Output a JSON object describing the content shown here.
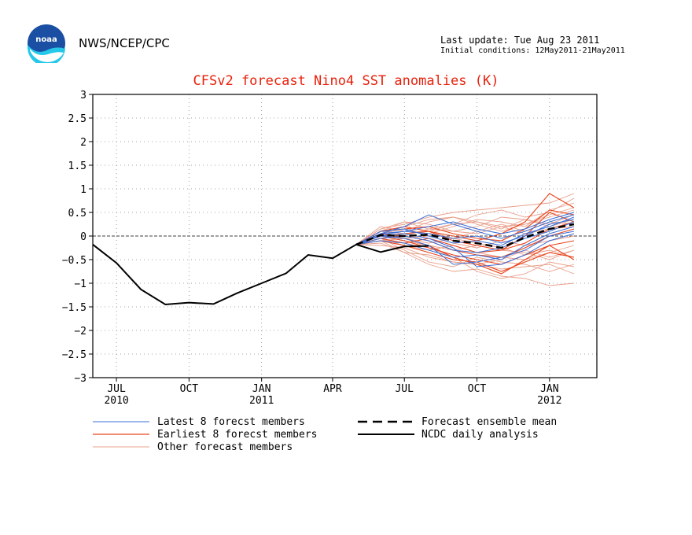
{
  "header": {
    "org": "NWS/NCEP/CPC",
    "last_update": "Last update: Tue Aug 23 2011",
    "initial_conditions": "Initial conditions: 12May2011-21May2011"
  },
  "colors": {
    "title": "#e8200a",
    "latest": "#3a6fd8",
    "earliest": "#e8431a",
    "other": "#e8a08c",
    "ncdc": "#000000",
    "mean": "#000000",
    "logo_blue": "#1a4fa3",
    "logo_cyan": "#25c8e8"
  },
  "chart_data": {
    "type": "line",
    "title": "CFSv2 forecast Nino4 SST anomalies (K)",
    "xlabel": "",
    "ylabel": "",
    "ylim": [
      -3,
      3
    ],
    "yticks": [
      3,
      2.5,
      2,
      1.5,
      1,
      0.5,
      0,
      -0.5,
      -1,
      -1.5,
      -2,
      -2.5,
      -3
    ],
    "ytick_labels": [
      "3",
      "2.5",
      "2",
      "1.5",
      "1",
      "0.5",
      "0",
      "−0.5",
      "−1",
      "−1.5",
      "−2",
      "−2.5",
      "−3"
    ],
    "xlim": [
      "2010-06-01",
      "2012-03-01"
    ],
    "xticks": [
      {
        "date": "2010-07-01",
        "label": "JUL",
        "year": "2010"
      },
      {
        "date": "2010-10-01",
        "label": "OCT",
        "year": ""
      },
      {
        "date": "2011-01-01",
        "label": "JAN",
        "year": "2011"
      },
      {
        "date": "2011-04-01",
        "label": "APR",
        "year": ""
      },
      {
        "date": "2011-07-01",
        "label": "JUL",
        "year": ""
      },
      {
        "date": "2011-10-01",
        "label": "OCT",
        "year": ""
      },
      {
        "date": "2012-01-01",
        "label": "JAN",
        "year": "2012"
      }
    ],
    "grid": true,
    "legend": {
      "position": "below",
      "left": [
        {
          "key": "latest",
          "label": "Latest 8 forecst members"
        },
        {
          "key": "earliest",
          "label": "Earliest 8 forecst members"
        },
        {
          "key": "other",
          "label": "Other forecast members"
        }
      ],
      "right": [
        {
          "key": "mean",
          "label": "Forecast ensemble mean"
        },
        {
          "key": "ncdc",
          "label": "NCDC daily analysis"
        }
      ]
    },
    "ncdc_daily_analysis": {
      "x": [
        "2010-06-01",
        "2010-07-01",
        "2010-08-01",
        "2010-09-01",
        "2010-10-01",
        "2010-11-01",
        "2010-12-01",
        "2011-01-01",
        "2011-02-01",
        "2011-03-01",
        "2011-04-01",
        "2011-05-01",
        "2011-06-01",
        "2011-07-01",
        "2011-08-01"
      ],
      "y": [
        -0.18,
        -0.57,
        -1.13,
        -1.45,
        -1.41,
        -1.44,
        -1.21,
        -1.0,
        -0.79,
        -0.4,
        -0.47,
        -0.18,
        -0.34,
        -0.22,
        -0.21
      ]
    },
    "forecast_x": [
      "2011-05-01",
      "2011-06-01",
      "2011-07-01",
      "2011-08-01",
      "2011-09-01",
      "2011-10-01",
      "2011-11-01",
      "2011-12-01",
      "2012-01-01",
      "2012-02-01"
    ],
    "forecast_ensemble_mean": [
      -0.18,
      0.02,
      0.0,
      0.03,
      -0.1,
      -0.15,
      -0.25,
      -0.03,
      0.15,
      0.25
    ],
    "series": [
      {
        "group": "latest",
        "values": [
          -0.18,
          0.02,
          0.1,
          0.2,
          0.3,
          0.15,
          0.05,
          0.15,
          0.35,
          0.5
        ]
      },
      {
        "group": "latest",
        "values": [
          -0.18,
          -0.05,
          0.0,
          -0.1,
          -0.3,
          -0.35,
          -0.25,
          -0.05,
          0.1,
          0.3
        ]
      },
      {
        "group": "latest",
        "values": [
          -0.18,
          0.1,
          0.15,
          0.0,
          -0.15,
          -0.1,
          -0.2,
          0.05,
          0.2,
          0.4
        ]
      },
      {
        "group": "latest",
        "values": [
          -0.18,
          0.0,
          -0.05,
          -0.2,
          -0.6,
          -0.55,
          -0.45,
          -0.3,
          0.0,
          0.1
        ]
      },
      {
        "group": "latest",
        "values": [
          -0.18,
          0.05,
          0.2,
          0.45,
          0.25,
          0.1,
          -0.05,
          0.1,
          0.3,
          0.45
        ]
      },
      {
        "group": "latest",
        "values": [
          -0.18,
          -0.1,
          -0.15,
          -0.3,
          -0.45,
          -0.4,
          -0.5,
          -0.2,
          0.05,
          0.2
        ]
      },
      {
        "group": "latest",
        "values": [
          -0.18,
          0.05,
          0.1,
          0.05,
          -0.05,
          0.0,
          -0.15,
          0.0,
          0.25,
          0.35
        ]
      },
      {
        "group": "latest",
        "values": [
          -0.18,
          0.0,
          0.05,
          -0.05,
          -0.25,
          -0.65,
          -0.6,
          -0.4,
          -0.1,
          0.05
        ]
      },
      {
        "group": "earliest",
        "values": [
          -0.18,
          0.05,
          -0.05,
          -0.2,
          -0.45,
          -0.6,
          -0.8,
          -0.5,
          -0.2,
          -0.1
        ]
      },
      {
        "group": "earliest",
        "values": [
          -0.18,
          0.1,
          0.2,
          0.1,
          0.0,
          -0.1,
          0.05,
          0.3,
          0.9,
          0.6
        ]
      },
      {
        "group": "earliest",
        "values": [
          -0.18,
          -0.1,
          -0.2,
          -0.35,
          -0.5,
          -0.55,
          -0.75,
          -0.55,
          -0.35,
          -0.45
        ]
      },
      {
        "group": "earliest",
        "values": [
          -0.18,
          0.0,
          0.05,
          0.1,
          -0.1,
          -0.2,
          -0.3,
          0.0,
          0.5,
          0.3
        ]
      },
      {
        "group": "earliest",
        "values": [
          -0.18,
          0.05,
          0.0,
          -0.1,
          -0.3,
          -0.4,
          -0.45,
          -0.25,
          0.0,
          0.15
        ]
      },
      {
        "group": "earliest",
        "values": [
          -0.18,
          -0.05,
          -0.15,
          -0.05,
          -0.2,
          -0.35,
          -0.3,
          -0.15,
          0.15,
          0.3
        ]
      },
      {
        "group": "earliest",
        "values": [
          -0.18,
          0.1,
          0.15,
          0.2,
          0.05,
          -0.05,
          -0.1,
          0.15,
          0.55,
          0.45
        ]
      },
      {
        "group": "earliest",
        "values": [
          -0.18,
          0.0,
          -0.1,
          -0.25,
          -0.4,
          -0.5,
          -0.6,
          -0.4,
          -0.2,
          -0.5
        ]
      },
      {
        "group": "other",
        "values": [
          -0.18,
          0.15,
          0.25,
          0.4,
          0.5,
          0.55,
          0.6,
          0.65,
          0.7,
          0.9
        ]
      },
      {
        "group": "other",
        "values": [
          -0.18,
          -0.15,
          -0.35,
          -0.6,
          -0.75,
          -0.7,
          -0.85,
          -0.9,
          -1.05,
          -1.0
        ]
      },
      {
        "group": "other",
        "values": [
          -0.18,
          0.1,
          0.3,
          0.25,
          0.1,
          0.05,
          0.2,
          0.25,
          0.45,
          0.6
        ]
      },
      {
        "group": "other",
        "values": [
          -0.18,
          -0.05,
          -0.3,
          -0.55,
          -0.65,
          -0.45,
          -0.55,
          -0.6,
          -0.75,
          -0.6
        ]
      },
      {
        "group": "other",
        "values": [
          -0.18,
          0.05,
          0.15,
          0.05,
          0.2,
          0.35,
          0.3,
          0.2,
          0.55,
          0.7
        ]
      },
      {
        "group": "other",
        "values": [
          -0.18,
          0.0,
          -0.1,
          -0.2,
          -0.3,
          -0.2,
          -0.3,
          -0.35,
          -0.5,
          -0.3
        ]
      },
      {
        "group": "other",
        "values": [
          -0.18,
          0.2,
          0.1,
          0.3,
          0.4,
          0.3,
          0.15,
          0.35,
          0.25,
          0.45
        ]
      },
      {
        "group": "other",
        "values": [
          -0.18,
          -0.2,
          -0.25,
          -0.45,
          -0.55,
          -0.6,
          -0.7,
          -0.65,
          -0.6,
          -0.8
        ]
      },
      {
        "group": "other",
        "values": [
          -0.18,
          0.05,
          0.0,
          0.15,
          0.25,
          0.45,
          0.55,
          0.4,
          0.5,
          0.8
        ]
      },
      {
        "group": "other",
        "values": [
          -0.18,
          -0.1,
          -0.05,
          -0.15,
          -0.05,
          -0.15,
          -0.25,
          -0.4,
          -0.3,
          -0.45
        ]
      },
      {
        "group": "other",
        "values": [
          -0.18,
          0.1,
          0.2,
          0.1,
          -0.05,
          0.1,
          0.25,
          0.1,
          0.3,
          0.25
        ]
      },
      {
        "group": "other",
        "values": [
          -0.18,
          -0.05,
          -0.2,
          -0.3,
          -0.2,
          -0.35,
          -0.45,
          -0.5,
          -0.35,
          -0.2
        ]
      },
      {
        "group": "other",
        "values": [
          -0.18,
          0.0,
          -0.05,
          0.0,
          -0.15,
          -0.25,
          -0.1,
          -0.2,
          -0.1,
          0.0
        ]
      },
      {
        "group": "other",
        "values": [
          -0.18,
          0.15,
          0.3,
          0.15,
          0.1,
          0.2,
          0.4,
          0.35,
          0.2,
          0.35
        ]
      },
      {
        "group": "other",
        "values": [
          -0.18,
          -0.1,
          -0.35,
          -0.4,
          -0.55,
          -0.6,
          -0.5,
          -0.3,
          -0.45,
          -0.3
        ]
      },
      {
        "group": "other",
        "values": [
          -0.18,
          0.05,
          0.2,
          0.35,
          0.4,
          0.25,
          0.1,
          0.25,
          0.4,
          0.55
        ]
      },
      {
        "group": "other",
        "values": [
          -0.18,
          -0.05,
          -0.15,
          -0.25,
          -0.45,
          -0.75,
          -0.9,
          -0.8,
          -0.55,
          -0.65
        ]
      },
      {
        "group": "other",
        "values": [
          -0.18,
          0.1,
          0.05,
          0.1,
          0.25,
          0.3,
          0.2,
          0.05,
          0.15,
          0.2
        ]
      }
    ]
  }
}
